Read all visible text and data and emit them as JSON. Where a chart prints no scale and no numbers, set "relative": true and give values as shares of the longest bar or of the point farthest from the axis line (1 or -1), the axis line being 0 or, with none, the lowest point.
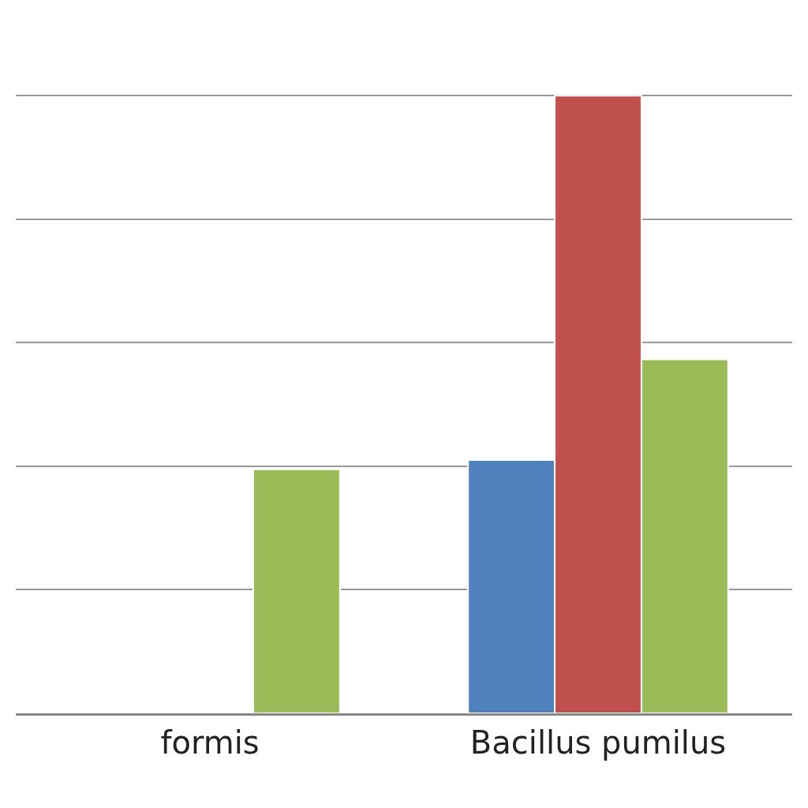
{
  "chart_data": {
    "type": "bar",
    "relative": true,
    "categories": [
      "formis",
      "Bacillus pumilus"
    ],
    "series": [
      {
        "color": "#4f81bd",
        "values": [
          null,
          0.41
        ]
      },
      {
        "color": "#c0504d",
        "values": [
          null,
          1
        ]
      },
      {
        "color": "#9bbb59",
        "values": [
          0.395,
          0.573
        ]
      }
    ],
    "grid": "y"
  }
}
